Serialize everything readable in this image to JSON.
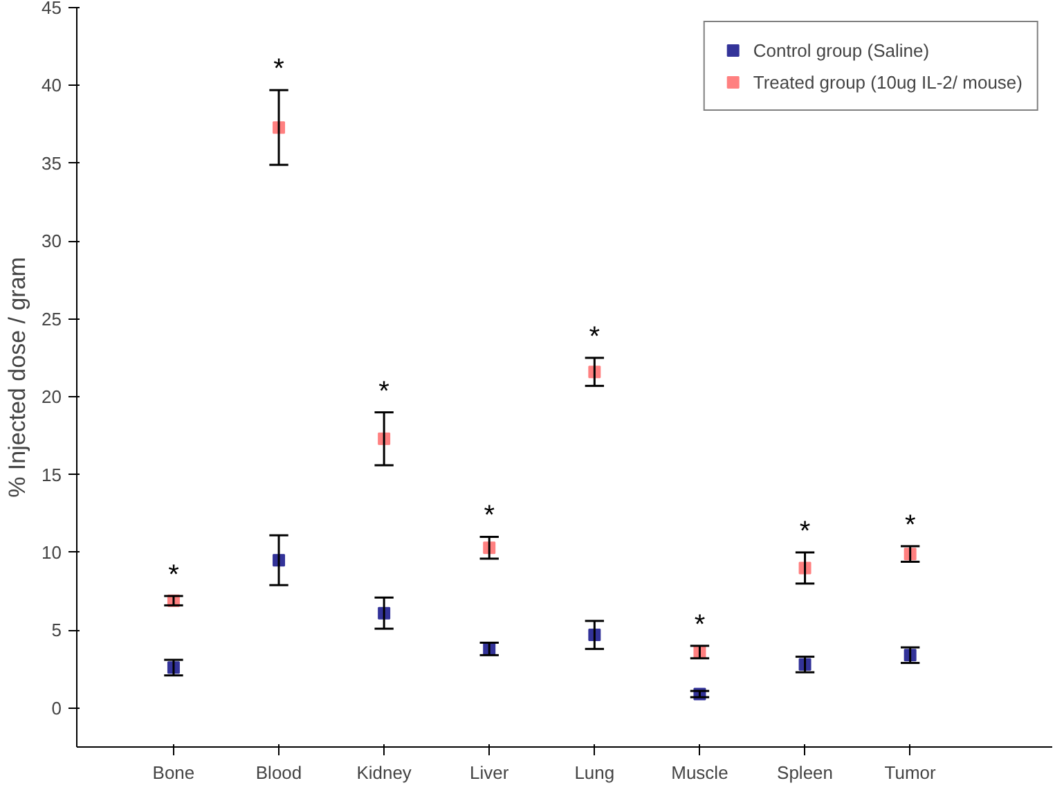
{
  "chart_data": {
    "type": "scatter",
    "ylabel": "% Injected dose / gram",
    "categories": [
      "Bone",
      "Blood",
      "Kidney",
      "Liver",
      "Lung",
      "Muscle",
      "Spleen",
      "Tumor"
    ],
    "series": [
      {
        "name": "Control group (Saline)",
        "color": "#333399",
        "values": [
          2.6,
          9.5,
          6.1,
          3.8,
          4.7,
          0.9,
          2.8,
          3.4
        ],
        "errors": [
          0.5,
          1.6,
          1.0,
          0.4,
          0.9,
          0.2,
          0.5,
          0.5
        ]
      },
      {
        "name": "Treated group (10ug IL-2/ mouse)",
        "color": "#ff8080",
        "values": [
          6.9,
          37.3,
          17.3,
          10.3,
          21.6,
          3.6,
          9.0,
          9.9
        ],
        "errors": [
          0.3,
          2.4,
          1.7,
          0.7,
          0.9,
          0.4,
          1.0,
          0.5
        ]
      }
    ],
    "ylim": [
      -2.5,
      45
    ],
    "yticks": [
      0,
      5,
      10,
      15,
      20,
      25,
      30,
      35,
      40,
      45
    ],
    "annotations": [
      "*",
      "*",
      "*",
      "*",
      "*",
      "*",
      "*",
      "*"
    ],
    "marker": "square",
    "legend": "top right",
    "grid": false
  }
}
